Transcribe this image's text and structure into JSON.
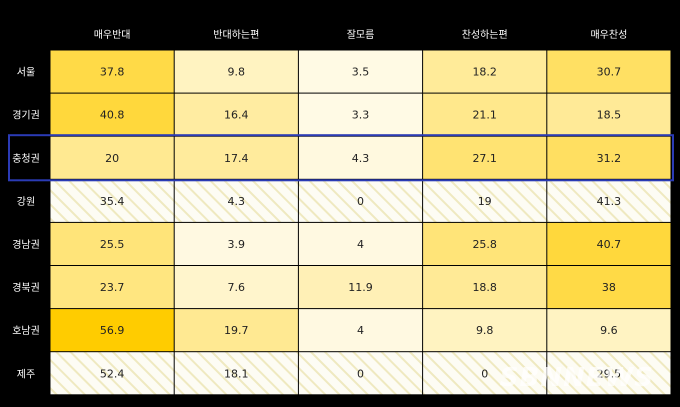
{
  "chart_data": {
    "type": "heatmap",
    "columns": [
      "매우반대",
      "반대하는편",
      "잘모름",
      "찬성하는편",
      "매우찬성"
    ],
    "rows": [
      "서울",
      "경기권",
      "충청권",
      "강원",
      "경남권",
      "경북권",
      "호남권",
      "제주"
    ],
    "values": [
      [
        37.8,
        9.8,
        3.5,
        18.2,
        30.7
      ],
      [
        40.8,
        16.4,
        3.3,
        21.1,
        18.5
      ],
      [
        20,
        17.4,
        4.3,
        27.1,
        31.2
      ],
      [
        35.4,
        4.3,
        0,
        19,
        41.3
      ],
      [
        25.5,
        3.9,
        4,
        25.8,
        40.7
      ],
      [
        23.7,
        7.6,
        11.9,
        18.8,
        38
      ],
      [
        56.9,
        19.7,
        4,
        9.8,
        9.6
      ],
      [
        52.4,
        18.1,
        0,
        0,
        29.5
      ]
    ],
    "value_labels": [
      [
        "37.8",
        "9.8",
        "3.5",
        "18.2",
        "30.7"
      ],
      [
        "40.8",
        "16.4",
        "3.3",
        "21.1",
        "18.5"
      ],
      [
        "20",
        "17.4",
        "4.3",
        "27.1",
        "31.2"
      ],
      [
        "35.4",
        "4.3",
        "0",
        "19",
        "41.3"
      ],
      [
        "25.5",
        "3.9",
        "4",
        "25.8",
        "40.7"
      ],
      [
        "23.7",
        "7.6",
        "11.9",
        "18.8",
        "38"
      ],
      [
        "56.9",
        "19.7",
        "4",
        "9.8",
        "9.6"
      ],
      [
        "52.4",
        "18.1",
        "0",
        "0",
        "29.5"
      ]
    ],
    "hatched_rows": [
      "강원",
      "제주"
    ],
    "highlighted_row": "충청권",
    "color_scale": {
      "low": "#ffffff",
      "high": "#ffcc00",
      "highlight_border": "#2b3bb5"
    }
  },
  "watermark": "SBNNEWS"
}
